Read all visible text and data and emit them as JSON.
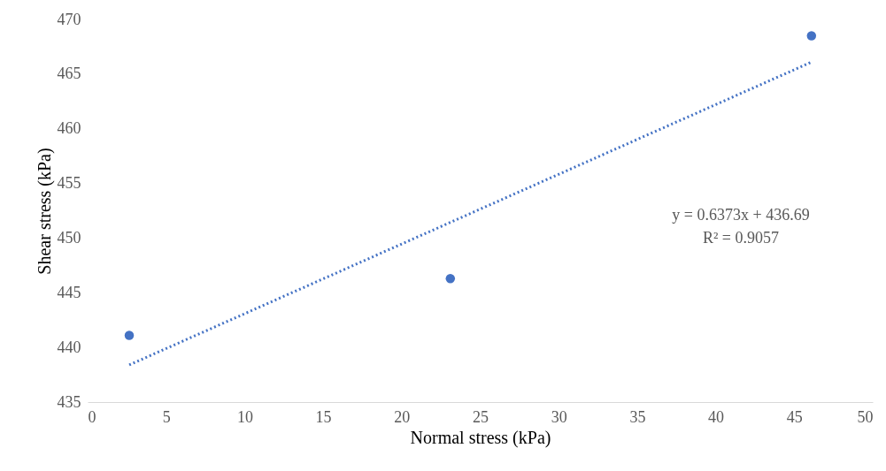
{
  "chart_data": {
    "type": "scatter",
    "xlabel": "Normal stress (kPa)",
    "ylabel": "Shear stress (kPa)",
    "xlim": [
      0,
      50
    ],
    "xticks": [
      0,
      5,
      10,
      15,
      20,
      25,
      30,
      35,
      40,
      45,
      50
    ],
    "ylim": [
      435,
      470
    ],
    "yticks": [
      435,
      440,
      445,
      450,
      455,
      460,
      465,
      470
    ],
    "grid": false,
    "series": [
      {
        "color": "#4472c4",
        "marker": "circle",
        "x": [
          2.65,
          23.1,
          46.1
        ],
        "values": [
          441.1,
          446.3,
          468.5
        ]
      },
      {
        "type": "line",
        "color": "#4472c4",
        "line_style": "dotted",
        "x": [
          2.65,
          46.1
        ],
        "values": [
          438.4,
          466.1
        ]
      }
    ],
    "annotations": [
      "y = 0.6373x + 436.69",
      "R² = 0.9057"
    ]
  }
}
